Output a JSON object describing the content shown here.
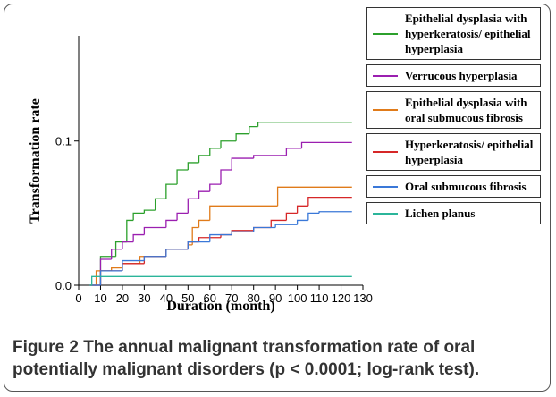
{
  "chart_data": {
    "type": "step",
    "xlabel": "Duration (month)",
    "ylabel": "Transformation rate",
    "xlim": [
      0,
      130
    ],
    "xticks": [
      0,
      10,
      20,
      30,
      40,
      50,
      60,
      70,
      80,
      90,
      100,
      110,
      120,
      130
    ],
    "ylim": [
      0,
      0.173
    ],
    "yticks": [
      {
        "value": 0,
        "label": "0.0"
      },
      0.1
    ],
    "series": [
      {
        "name": "Epithelial dysplasia with hyperkeratosis/ epithelial hyperplasia",
        "color": "#2ca02c",
        "x": [
          5,
          10,
          17,
          22,
          25,
          30,
          35,
          40,
          45,
          50,
          55,
          60,
          65,
          72,
          78,
          82,
          125
        ],
        "values": [
          0,
          0.02,
          0.03,
          0.045,
          0.05,
          0.052,
          0.06,
          0.07,
          0.08,
          0.085,
          0.09,
          0.095,
          0.1,
          0.105,
          0.11,
          0.113,
          0.113
        ]
      },
      {
        "name": "Verrucous hyperplasia",
        "color": "#9b1fb0",
        "x": [
          5,
          10,
          15,
          20,
          25,
          30,
          40,
          45,
          50,
          55,
          60,
          65,
          70,
          80,
          92,
          95,
          102,
          125
        ],
        "values": [
          0,
          0.018,
          0.025,
          0.03,
          0.035,
          0.04,
          0.045,
          0.05,
          0.06,
          0.065,
          0.07,
          0.08,
          0.088,
          0.09,
          0.09,
          0.095,
          0.099,
          0.099
        ]
      },
      {
        "name": "Epithelial dysplasia with oral submucous fibrosis",
        "color": "#e07b1a",
        "x": [
          5,
          8,
          15,
          20,
          28,
          40,
          50,
          52,
          55,
          60,
          91,
          125
        ],
        "values": [
          0,
          0.01,
          0.012,
          0.015,
          0.02,
          0.025,
          0.028,
          0.04,
          0.045,
          0.055,
          0.068,
          0.068
        ]
      },
      {
        "name": "Hyperkeratosis/ epithelial hyperplasia",
        "color": "#d62728",
        "x": [
          5,
          10,
          20,
          30,
          40,
          50,
          55,
          65,
          70,
          80,
          88,
          95,
          100,
          105,
          125
        ],
        "values": [
          0,
          0.01,
          0.015,
          0.02,
          0.025,
          0.03,
          0.033,
          0.035,
          0.038,
          0.04,
          0.045,
          0.05,
          0.055,
          0.061,
          0.061
        ]
      },
      {
        "name": "Oral submucous fibrosis",
        "color": "#3a78d8",
        "x": [
          5,
          10,
          20,
          30,
          40,
          50,
          60,
          70,
          80,
          90,
          100,
          105,
          110,
          125
        ],
        "values": [
          0,
          0.01,
          0.017,
          0.02,
          0.025,
          0.03,
          0.035,
          0.037,
          0.04,
          0.042,
          0.045,
          0.05,
          0.051,
          0.051
        ]
      },
      {
        "name": "Lichen planus",
        "color": "#2bb59a",
        "x": [
          5,
          6,
          125
        ],
        "values": [
          0,
          0.006,
          0.006
        ]
      }
    ]
  },
  "caption": {
    "label": "Figure 2",
    "text": "The annual malignant transformation rate of oral potentially malignant disorders (p < 0.0001; log-rank test)."
  }
}
